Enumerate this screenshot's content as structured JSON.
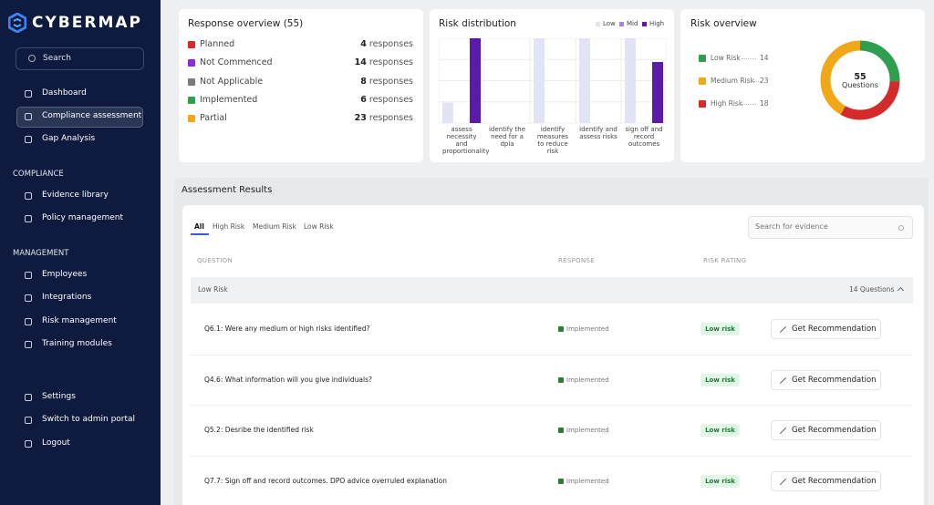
{
  "sidebar": {
    "brand": "CYBERMAP",
    "search": "Search",
    "nav": [
      "Dashboard",
      "Compliance assessment",
      "Gap Analysis"
    ],
    "sections": [
      {
        "title": "COMPLIANCE",
        "items": [
          "Evidence library",
          "Policy management"
        ]
      },
      {
        "title": "MANAGEMENT",
        "items": [
          "Employees",
          "Integrations",
          "Risk management",
          "Training modules"
        ]
      }
    ],
    "footer": [
      "Settings",
      "Switch to admin portal",
      "Logout"
    ]
  },
  "response_overview": {
    "title": "Response overview (55)",
    "unit": "responses",
    "items": [
      {
        "name": "Planned",
        "color": "#d42a2a",
        "count": 4
      },
      {
        "name": "Not Commenced",
        "color": "#8a2be2",
        "count": 14
      },
      {
        "name": "Not Applicable",
        "color": "#7a7a7a",
        "count": 8
      },
      {
        "name": "Implemented",
        "color": "#2e9e4f",
        "count": 6
      },
      {
        "name": "Partial",
        "color": "#f0a818",
        "count": 23
      }
    ]
  },
  "risk_distribution": {
    "type": "bar",
    "title": "Risk distribution",
    "categories": [
      "assess necessity and proportionality",
      "identify the need for a dpia",
      "identify measures to reduce risk",
      "identify and assess risks",
      "sign off and record outcomes"
    ],
    "series": [
      {
        "name": "Low",
        "color": "#e2e3f5",
        "values": [
          24,
          0,
          100,
          100,
          100
        ]
      },
      {
        "name": "Mid",
        "color": "#a784e0",
        "values": [
          0,
          0,
          0,
          0,
          0
        ]
      },
      {
        "name": "High",
        "color": "#5b1aa8",
        "values": [
          100,
          0,
          0,
          0,
          72
        ]
      }
    ]
  },
  "risk_overview": {
    "type": "pie",
    "title": "Risk overview",
    "categories": [
      "Low Risk",
      "Medium Risk",
      "High Risk"
    ],
    "values": [
      14,
      23,
      18
    ],
    "colors": [
      "#2e9e4f",
      "#f0a818",
      "#d42a2a"
    ],
    "total": 55,
    "center_label": "Questions"
  },
  "assessment": {
    "title": "Assessment Results",
    "tabs": [
      "All",
      "High Risk",
      "Medium Risk",
      "Low Risk"
    ],
    "search_placeholder": "Search for evidence",
    "columns": [
      "QUESTION",
      "RESPONSE",
      "RISK RATING"
    ],
    "group": {
      "label": "Low Risk",
      "count_label": "14 Questions"
    },
    "rows": [
      {
        "question": "Q6.1: Were any medium or high risks identified?",
        "response": "Implemented",
        "rating": "Low risk",
        "action": "Get Recommendation"
      },
      {
        "question": "Q4.6: What information will you give individuals?",
        "response": "Implemented",
        "rating": "Low risk",
        "action": "Get Recommendation"
      },
      {
        "question": "Q5.2: Desribe the identified risk",
        "response": "Implemented",
        "rating": "Low risk",
        "action": "Get Recommendation"
      },
      {
        "question": "Q7.7: Sign off and record outcomes. DPO advice overruled explanation",
        "response": "Implemented",
        "rating": "Low risk",
        "action": "Get Recommendation"
      }
    ]
  }
}
